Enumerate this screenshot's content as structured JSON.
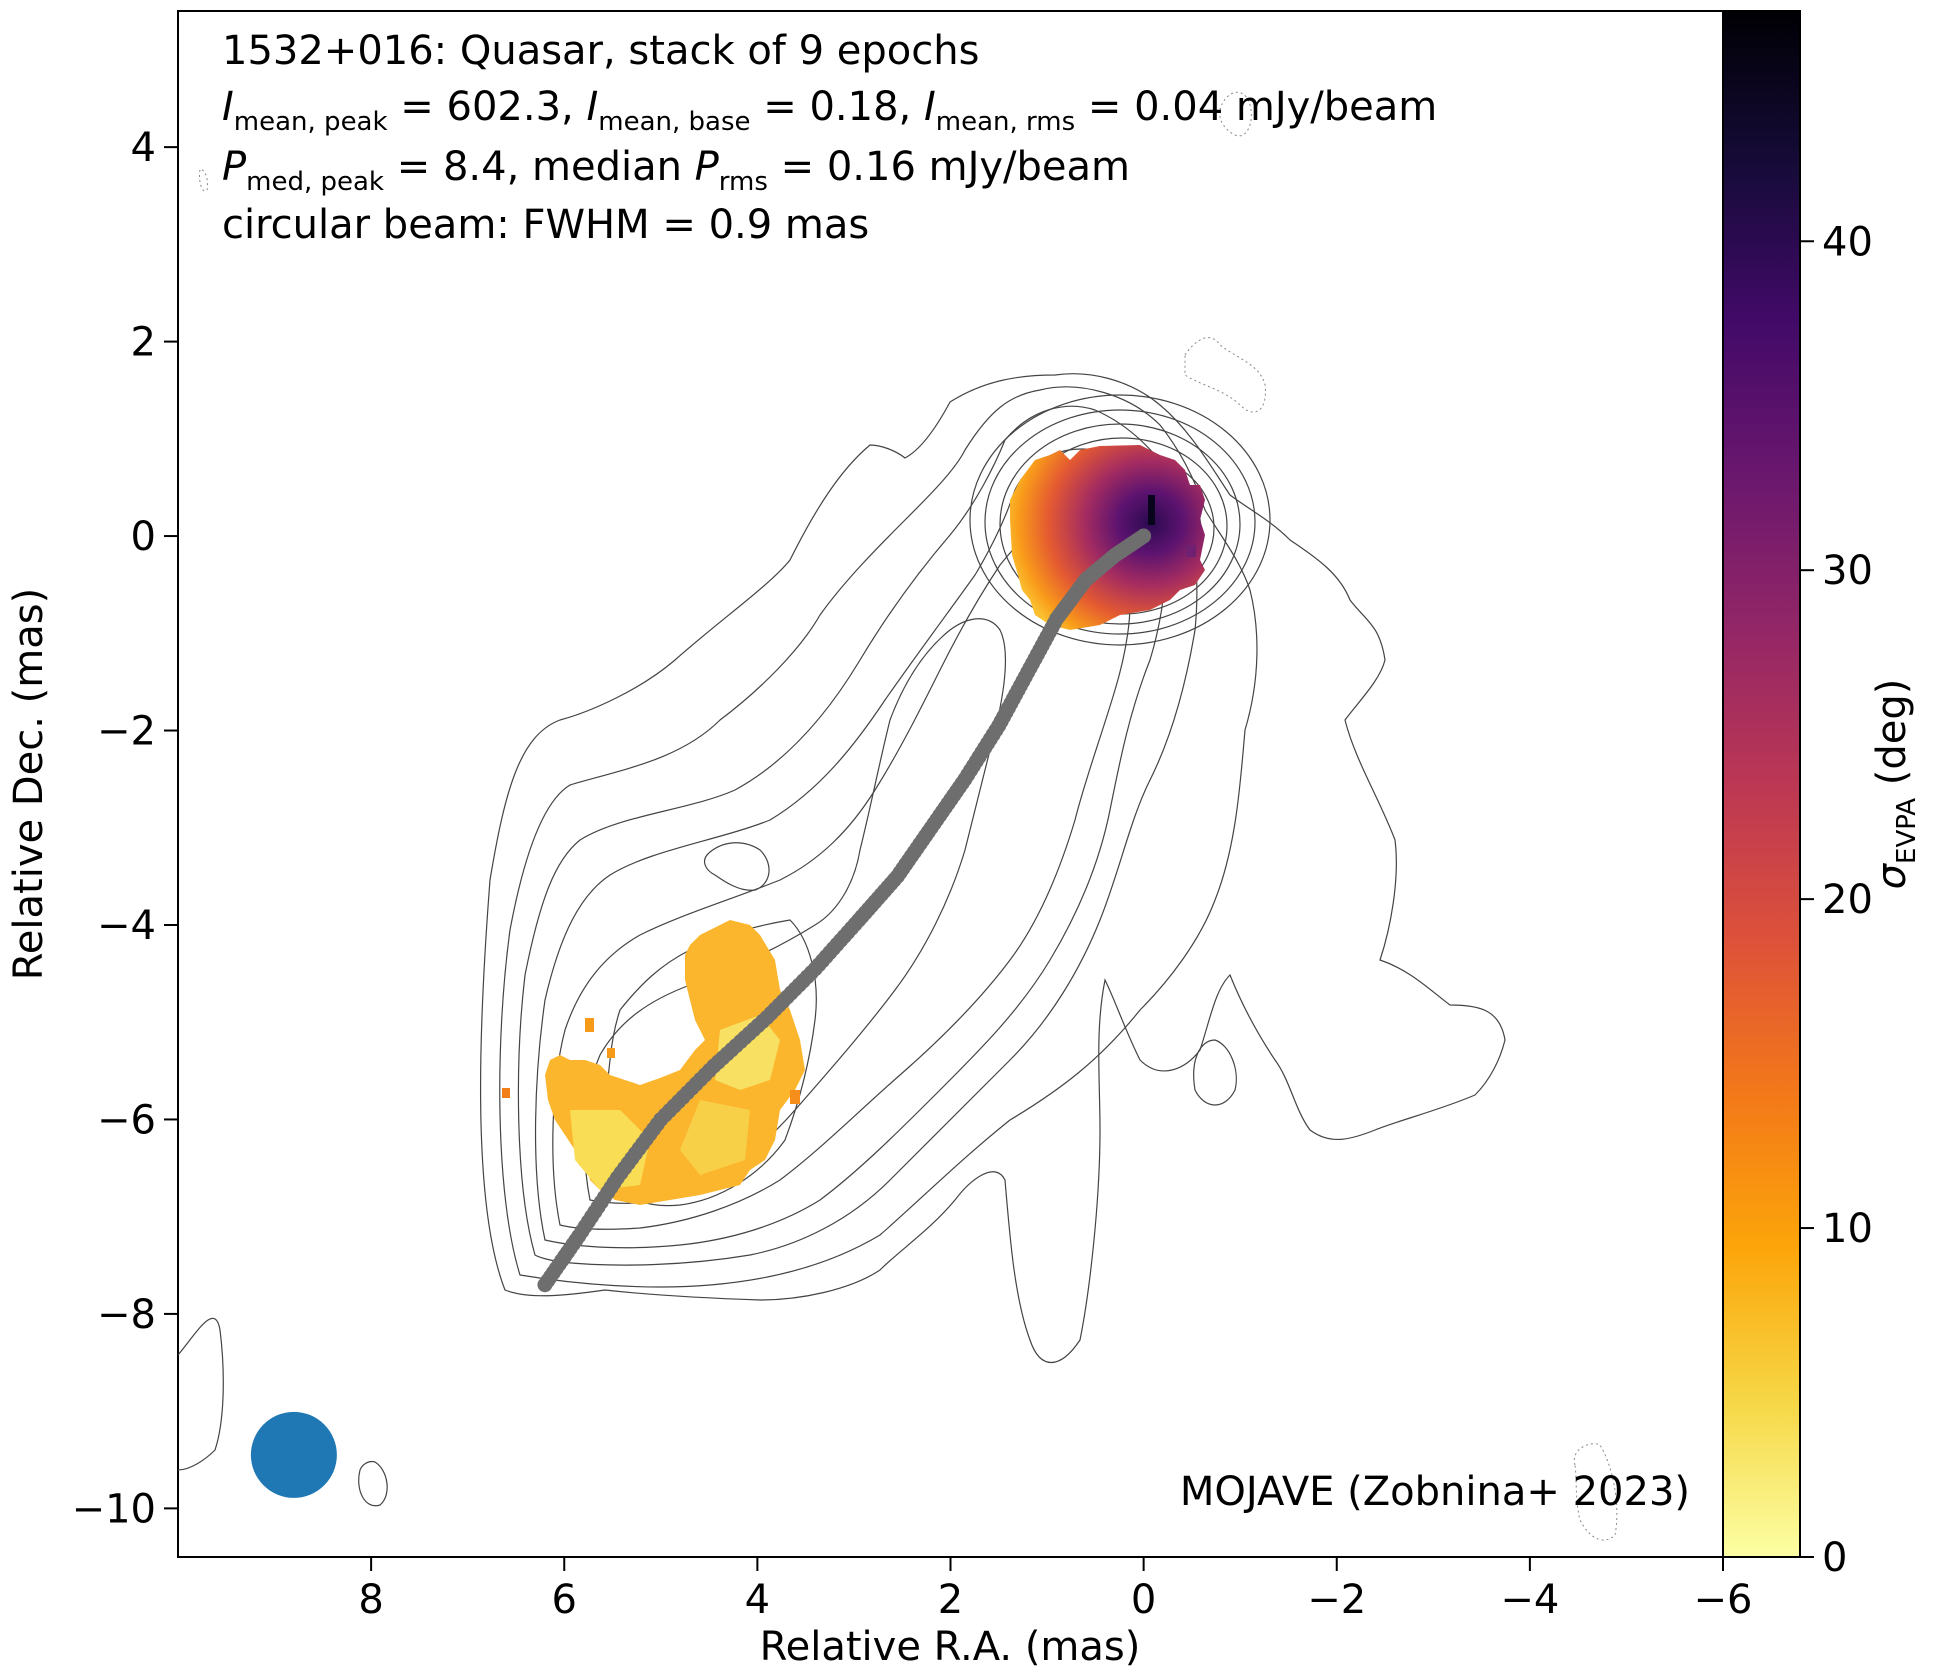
{
  "chart_data": {
    "type": "heatmap",
    "title_lines": [
      "1532+016: Quasar, stack of 9 epochs",
      "I_mean,peak = 602.3, I_mean,base = 0.18, I_mean,rms = 0.04 mJy/beam",
      "P_med,peak = 8.4, median P_rms = 0.16 mJy/beam",
      "circular beam: FWHM = 0.9 mas"
    ],
    "stats": {
      "i_peak": "602.3",
      "i_base": "0.18",
      "i_rms": "0.04",
      "p_peak": "8.4",
      "p_rms": "0.16",
      "unit": "mJy/beam",
      "fwhm": "0.9 mas"
    },
    "credit": "MOJAVE (Zobnina+ 2023)",
    "xlabel": "Relative R.A. (mas)",
    "ylabel": "Relative Dec. (mas)",
    "xlim": [
      10,
      -6
    ],
    "ylim": [
      -10.5,
      5.4
    ],
    "xticks": [
      8,
      6,
      4,
      2,
      0,
      -2,
      -4,
      -6
    ],
    "yticks": [
      4,
      2,
      0,
      -2,
      -4,
      -6,
      -8,
      -10
    ],
    "colorbar": {
      "label": "σ_EVPA (deg)",
      "range": [
        0,
        47
      ],
      "ticks": [
        0,
        10,
        20,
        30,
        40
      ],
      "colormap": "inferno_r"
    },
    "beam": {
      "x": 8.8,
      "y": -9.45,
      "fwhm_mas": 0.9,
      "color": "#1f77b4"
    },
    "ridgeline": {
      "color": "#6e6e6e",
      "points": [
        [
          0,
          0
        ],
        [
          0.3,
          -0.2
        ],
        [
          0.6,
          -0.45
        ],
        [
          0.9,
          -0.85
        ],
        [
          1.2,
          -1.4
        ],
        [
          1.5,
          -1.95
        ],
        [
          1.85,
          -2.5
        ],
        [
          2.2,
          -3.0
        ],
        [
          2.55,
          -3.5
        ],
        [
          2.95,
          -3.95
        ],
        [
          3.4,
          -4.45
        ],
        [
          3.9,
          -4.95
        ],
        [
          4.45,
          -5.45
        ],
        [
          5.0,
          -6.0
        ],
        [
          5.45,
          -6.6
        ],
        [
          5.85,
          -7.2
        ],
        [
          6.2,
          -7.7
        ]
      ]
    },
    "sigma_regions": [
      {
        "name": "core",
        "cx": -0.1,
        "cy": -0.15,
        "r": 1.25,
        "values": "increasing from ~5 deg (east edge) to ~40 deg (west of core)"
      },
      {
        "name": "jet",
        "extent_x": [
          6.5,
          3.4
        ],
        "extent_y": [
          -7.2,
          -4.3
        ],
        "values": "mostly 2–10 deg"
      }
    ],
    "contours": {
      "style": "gray solid lines",
      "negative_style": "gray dotted"
    }
  }
}
